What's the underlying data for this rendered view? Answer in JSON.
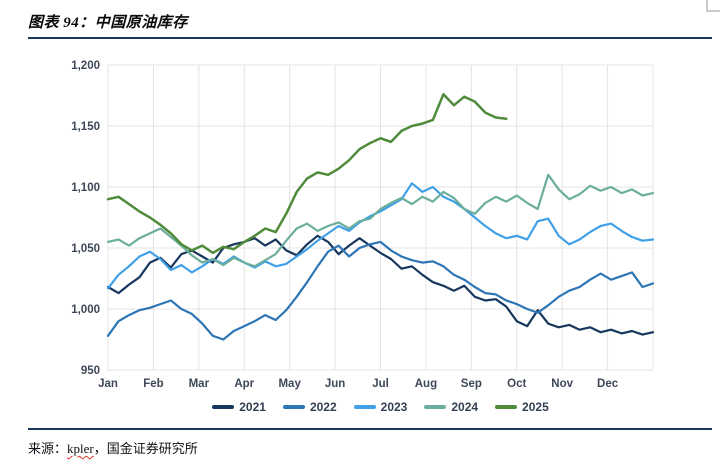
{
  "header": {
    "title": "图表 94：中国原油库存"
  },
  "source": {
    "prefix": "来源：",
    "vendor": "kpler",
    "suffix": "，国金证券研究所"
  },
  "colors": {
    "rule": "#17375E",
    "grid": "#E4E4E4",
    "axis_text": "#3E4757",
    "legend_text": "#333F50",
    "spellcheck_underline": "#D93025",
    "corner_mark": "#C9C9C9"
  },
  "chart_data": {
    "type": "line",
    "title": "中国原油库存",
    "xlabel": "",
    "ylabel": "",
    "ylim": [
      950,
      1200
    ],
    "grid": true,
    "legend_position": "bottom",
    "x_resolution": "weekly (index 0-52 across Jan-Dec)",
    "categories": [
      "Jan",
      "Feb",
      "Mar",
      "Apr",
      "May",
      "Jun",
      "Jul",
      "Aug",
      "Sep",
      "Oct",
      "Nov",
      "Dec"
    ],
    "yticks": [
      {
        "value": 950,
        "label": "950"
      },
      {
        "value": 1000,
        "label": "1,000"
      },
      {
        "value": 1050,
        "label": "1,050"
      },
      {
        "value": 1100,
        "label": "1,100"
      },
      {
        "value": 1150,
        "label": "1,150"
      },
      {
        "value": 1200,
        "label": "1,200"
      }
    ],
    "series": [
      {
        "name": "2021",
        "color": "#17375E",
        "values": [
          1018,
          1013,
          1020,
          1026,
          1038,
          1042,
          1034,
          1045,
          1048,
          1043,
          1038,
          1050,
          1053,
          1055,
          1058,
          1052,
          1057,
          1048,
          1044,
          1053,
          1060,
          1055,
          1045,
          1052,
          1058,
          1052,
          1046,
          1041,
          1033,
          1035,
          1028,
          1022,
          1019,
          1015,
          1019,
          1010,
          1007,
          1008,
          1002,
          990,
          986,
          999,
          988,
          985,
          987,
          983,
          985,
          981,
          983,
          980,
          982,
          979,
          981
        ]
      },
      {
        "name": "2022",
        "color": "#2E75B6",
        "values": [
          978,
          990,
          995,
          999,
          1001,
          1004,
          1007,
          1000,
          996,
          988,
          978,
          975,
          982,
          986,
          990,
          995,
          991,
          999,
          1010,
          1022,
          1035,
          1047,
          1052,
          1043,
          1050,
          1053,
          1055,
          1048,
          1043,
          1040,
          1038,
          1039,
          1035,
          1028,
          1024,
          1018,
          1013,
          1012,
          1007,
          1004,
          1000,
          997,
          1003,
          1010,
          1015,
          1018,
          1024,
          1029,
          1024,
          1027,
          1030,
          1018,
          1021
        ]
      },
      {
        "name": "2023",
        "color": "#3FA0E8",
        "values": [
          1017,
          1028,
          1035,
          1043,
          1047,
          1041,
          1032,
          1036,
          1030,
          1035,
          1041,
          1037,
          1043,
          1038,
          1034,
          1039,
          1035,
          1037,
          1043,
          1049,
          1056,
          1062,
          1068,
          1064,
          1071,
          1076,
          1080,
          1085,
          1090,
          1103,
          1096,
          1100,
          1092,
          1088,
          1082,
          1075,
          1068,
          1062,
          1058,
          1060,
          1057,
          1072,
          1074,
          1060,
          1053,
          1057,
          1063,
          1068,
          1070,
          1064,
          1059,
          1056,
          1057
        ]
      },
      {
        "name": "2024",
        "color": "#6CAE9D",
        "values": [
          1055,
          1057,
          1052,
          1058,
          1062,
          1066,
          1059,
          1052,
          1044,
          1038,
          1041,
          1036,
          1042,
          1038,
          1035,
          1040,
          1045,
          1056,
          1066,
          1070,
          1064,
          1068,
          1071,
          1066,
          1072,
          1074,
          1082,
          1087,
          1091,
          1086,
          1092,
          1088,
          1096,
          1091,
          1082,
          1078,
          1087,
          1092,
          1088,
          1093,
          1087,
          1082,
          1110,
          1098,
          1090,
          1094,
          1101,
          1097,
          1100,
          1095,
          1098,
          1093,
          1095
        ]
      },
      {
        "name": "2025",
        "color": "#4F8B3B",
        "values": [
          1090,
          1092,
          1086,
          1080,
          1075,
          1069,
          1062,
          1053,
          1048,
          1052,
          1046,
          1051,
          1049,
          1055,
          1060,
          1066,
          1063,
          1078,
          1096,
          1107,
          1112,
          1110,
          1115,
          1122,
          1131,
          1136,
          1140,
          1137,
          1146,
          1150,
          1152,
          1155,
          1176,
          1167,
          1174,
          1170,
          1161,
          1157,
          1156
        ]
      }
    ]
  }
}
